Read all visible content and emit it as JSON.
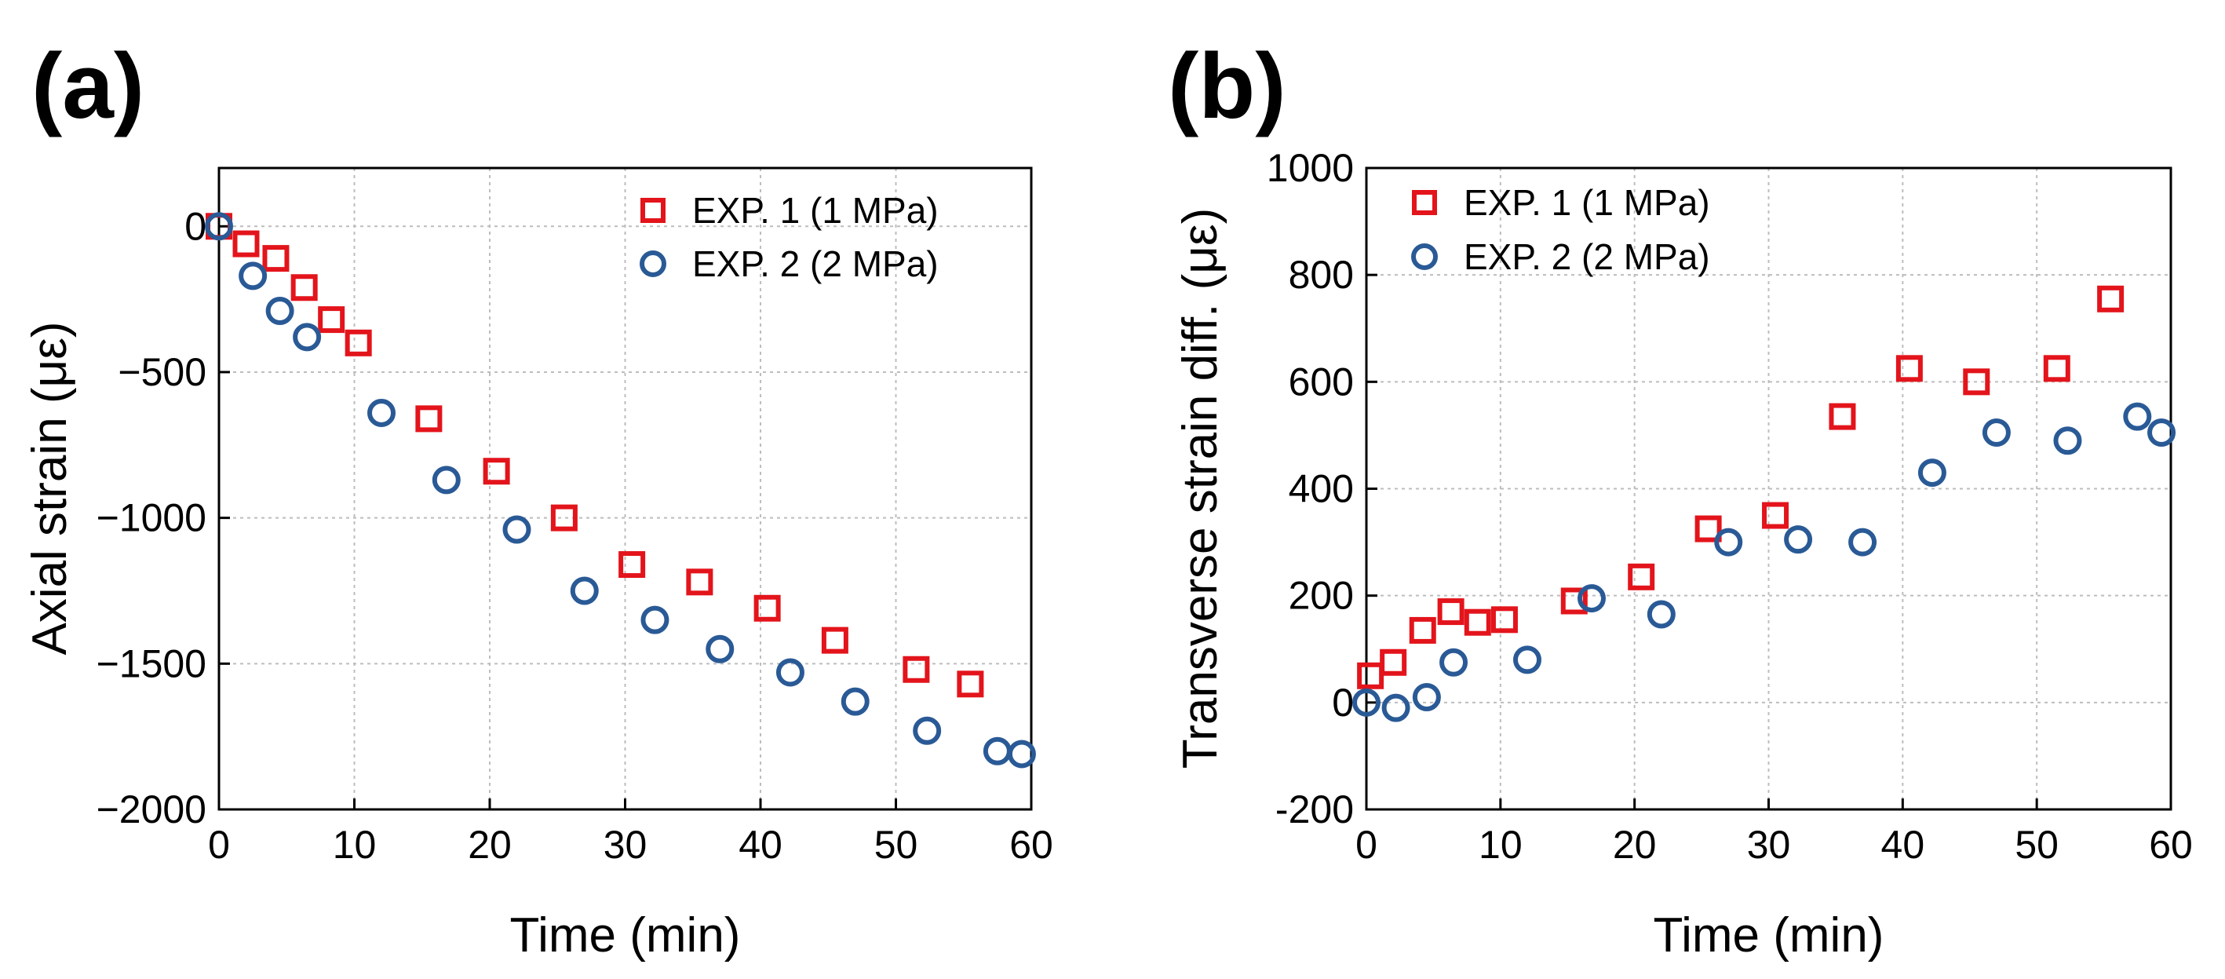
{
  "chart_data": [
    {
      "panel_label": "(a)",
      "type": "scatter",
      "xlabel": "Time (min)",
      "ylabel": "Axial strain (με)",
      "xlim": [
        0,
        60
      ],
      "ylim": [
        -2000,
        200
      ],
      "xticks": [
        0,
        10,
        20,
        30,
        40,
        50,
        60
      ],
      "yticks": [
        0,
        -500,
        -1000,
        -1500,
        -2000
      ],
      "ytick_labels": [
        "0",
        "−500",
        "−1000",
        "−1500",
        "−2000"
      ],
      "grid": true,
      "legend_position": "top-right",
      "series": [
        {
          "name": "EXP. 1 (1 MPa)",
          "marker": "square",
          "color": "#e3141b",
          "x": [
            0,
            2,
            4.2,
            6.3,
            8.3,
            10.3,
            15.5,
            20.5,
            25.5,
            30.5,
            35.5,
            40.5,
            45.5,
            51.5,
            55.5
          ],
          "y": [
            0,
            -60,
            -110,
            -210,
            -320,
            -400,
            -660,
            -840,
            -1000,
            -1160,
            -1220,
            -1310,
            -1420,
            -1520,
            -1570
          ]
        },
        {
          "name": "EXP. 2 (2 MPa)",
          "marker": "circle",
          "color": "#2a5a96",
          "x": [
            0,
            2.5,
            4.5,
            6.5,
            12,
            16.8,
            22,
            27,
            32.2,
            37,
            42.2,
            47,
            52.3,
            57.5,
            59.3
          ],
          "y": [
            0,
            -170,
            -290,
            -380,
            -640,
            -870,
            -1040,
            -1250,
            -1350,
            -1450,
            -1530,
            -1630,
            -1730,
            -1800,
            -1810
          ]
        }
      ]
    },
    {
      "panel_label": "(b)",
      "type": "scatter",
      "xlabel": "Time (min)",
      "ylabel": "Transverse strain diff. (με)",
      "xlim": [
        0,
        60
      ],
      "ylim": [
        -200,
        1000
      ],
      "xticks": [
        0,
        10,
        20,
        30,
        40,
        50,
        60
      ],
      "yticks": [
        1000,
        800,
        600,
        400,
        200,
        0,
        -200
      ],
      "ytick_labels": [
        "1000",
        "800",
        "600",
        "400",
        "200",
        "0",
        "-200"
      ],
      "grid": true,
      "legend_position": "top-left",
      "series": [
        {
          "name": "EXP. 1 (1 MPa)",
          "marker": "square",
          "color": "#e3141b",
          "x": [
            0.3,
            2,
            4.2,
            6.3,
            8.3,
            10.3,
            15.5,
            20.5,
            25.5,
            30.5,
            35.5,
            40.5,
            45.5,
            51.5,
            55.5
          ],
          "y": [
            50,
            75,
            135,
            170,
            150,
            155,
            190,
            235,
            325,
            350,
            535,
            625,
            600,
            625,
            755
          ]
        },
        {
          "name": "EXP. 2 (2 MPa)",
          "marker": "circle",
          "color": "#2a5a96",
          "x": [
            0,
            2.2,
            4.5,
            6.5,
            12,
            16.8,
            22,
            27,
            32.2,
            37,
            42.2,
            47,
            52.3,
            57.5,
            59.3
          ],
          "y": [
            0,
            -10,
            10,
            75,
            80,
            195,
            165,
            300,
            305,
            300,
            430,
            505,
            490,
            535,
            505
          ]
        }
      ]
    }
  ]
}
